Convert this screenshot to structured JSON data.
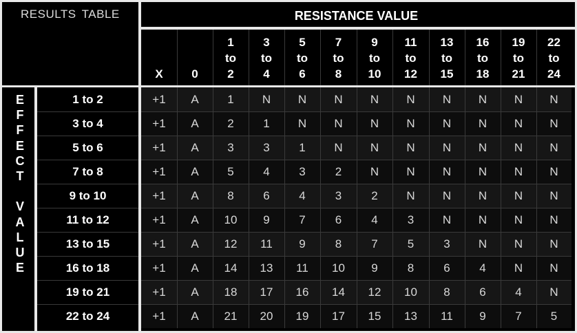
{
  "title": "RESULTS TABLE",
  "title_words": [
    "RESULTS",
    "TABLE"
  ],
  "resistance_header": "RESISTANCE VALUE",
  "effect_label_letters": [
    "E",
    "F",
    "F",
    "E",
    "C",
    "T",
    "",
    "V",
    "A",
    "L",
    "U",
    "E"
  ],
  "columns": [
    [
      "X"
    ],
    [
      "0"
    ],
    [
      "1",
      "to",
      "2"
    ],
    [
      "3",
      "to",
      "4"
    ],
    [
      "5",
      "to",
      "6"
    ],
    [
      "7",
      "to",
      "8"
    ],
    [
      "9",
      "to",
      "10"
    ],
    [
      "11",
      "to",
      "12"
    ],
    [
      "13",
      "to",
      "15"
    ],
    [
      "16",
      "to",
      "18"
    ],
    [
      "19",
      "to",
      "21"
    ],
    [
      "22",
      "to",
      "24"
    ]
  ],
  "rows": [
    {
      "label": "1 to 2",
      "values": [
        "+1",
        "A",
        "1",
        "N",
        "N",
        "N",
        "N",
        "N",
        "N",
        "N",
        "N",
        "N"
      ]
    },
    {
      "label": "3 to 4",
      "values": [
        "+1",
        "A",
        "2",
        "1",
        "N",
        "N",
        "N",
        "N",
        "N",
        "N",
        "N",
        "N"
      ]
    },
    {
      "label": "5 to 6",
      "values": [
        "+1",
        "A",
        "3",
        "3",
        "1",
        "N",
        "N",
        "N",
        "N",
        "N",
        "N",
        "N"
      ]
    },
    {
      "label": "7 to 8",
      "values": [
        "+1",
        "A",
        "5",
        "4",
        "3",
        "2",
        "N",
        "N",
        "N",
        "N",
        "N",
        "N"
      ]
    },
    {
      "label": "9 to 10",
      "values": [
        "+1",
        "A",
        "8",
        "6",
        "4",
        "3",
        "2",
        "N",
        "N",
        "N",
        "N",
        "N"
      ]
    },
    {
      "label": "11 to 12",
      "values": [
        "+1",
        "A",
        "10",
        "9",
        "7",
        "6",
        "4",
        "3",
        "N",
        "N",
        "N",
        "N"
      ]
    },
    {
      "label": "13 to 15",
      "values": [
        "+1",
        "A",
        "12",
        "11",
        "9",
        "8",
        "7",
        "5",
        "3",
        "N",
        "N",
        "N"
      ]
    },
    {
      "label": "16 to 18",
      "values": [
        "+1",
        "A",
        "14",
        "13",
        "11",
        "10",
        "9",
        "8",
        "6",
        "4",
        "N",
        "N"
      ]
    },
    {
      "label": "19 to 21",
      "values": [
        "+1",
        "A",
        "18",
        "17",
        "16",
        "14",
        "12",
        "10",
        "8",
        "6",
        "4",
        "N"
      ]
    },
    {
      "label": "22 to 24",
      "values": [
        "+1",
        "A",
        "21",
        "20",
        "19",
        "17",
        "15",
        "13",
        "11",
        "9",
        "7",
        "5"
      ]
    }
  ]
}
